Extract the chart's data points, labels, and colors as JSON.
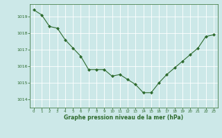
{
  "x": [
    0,
    1,
    2,
    3,
    4,
    5,
    6,
    7,
    8,
    9,
    10,
    11,
    12,
    13,
    14,
    15,
    16,
    17,
    18,
    19,
    20,
    21,
    22,
    23
  ],
  "y": [
    1019.4,
    1019.1,
    1018.4,
    1018.3,
    1017.6,
    1017.1,
    1016.6,
    1015.8,
    1015.8,
    1015.8,
    1015.4,
    1015.5,
    1015.2,
    1014.9,
    1014.4,
    1014.4,
    1015.0,
    1015.5,
    1015.9,
    1016.3,
    1016.7,
    1017.1,
    1017.8,
    1017.9
  ],
  "line_color": "#2d6a2d",
  "marker": "D",
  "marker_size": 2.0,
  "bg_color": "#cce8e8",
  "grid_color": "#aad4d4",
  "xlabel": "Graphe pression niveau de la mer (hPa)",
  "xlabel_color": "#2d6a2d",
  "tick_color": "#2d6a2d",
  "ylim": [
    1013.5,
    1019.75
  ],
  "xlim": [
    -0.5,
    23.5
  ],
  "yticks": [
    1014,
    1015,
    1016,
    1017,
    1018,
    1019
  ],
  "xticks": [
    0,
    1,
    2,
    3,
    4,
    5,
    6,
    7,
    8,
    9,
    10,
    11,
    12,
    13,
    14,
    15,
    16,
    17,
    18,
    19,
    20,
    21,
    22,
    23
  ]
}
